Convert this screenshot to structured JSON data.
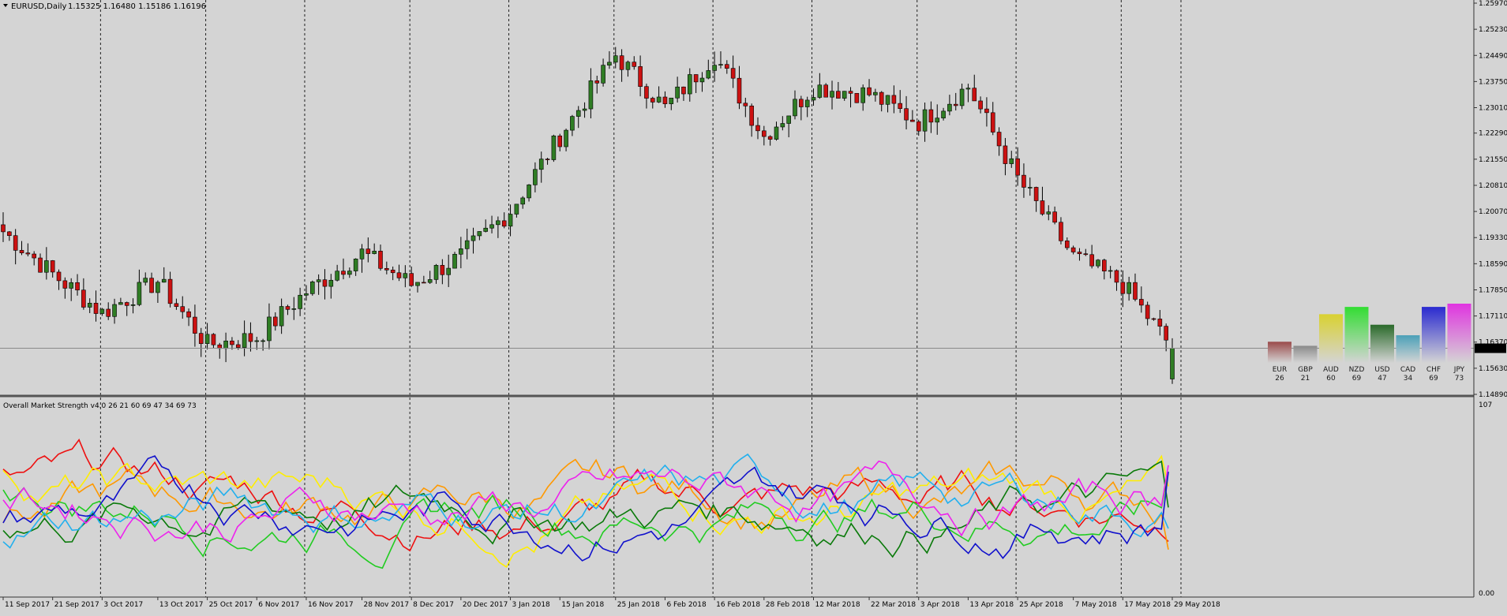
{
  "header": {
    "symbol": "EURUSD,Daily",
    "ohlc": "1.15325 1.16480 1.15186 1.16196"
  },
  "chart_data": [
    {
      "type": "candlestick",
      "title": "EURUSD,Daily",
      "x": [
        "11 Sep 2017",
        "21 Sep 2017",
        "3 Oct 2017",
        "13 Oct 2017",
        "25 Oct 2017",
        "6 Nov 2017",
        "16 Nov 2017",
        "28 Nov 2017",
        "8 Dec 2017",
        "20 Dec 2017",
        "3 Jan 2018",
        "15 Jan 2018",
        "25 Jan 2018",
        "6 Feb 2018",
        "16 Feb 2018",
        "28 Feb 2018",
        "12 Mar 2018",
        "22 Mar 2018",
        "3 Apr 2018",
        "13 Apr 2018",
        "25 Apr 2018",
        "7 May 2018",
        "17 May 2018",
        "29 May 2018"
      ],
      "anchors": [
        1.195,
        1.183,
        1.172,
        1.181,
        1.163,
        1.165,
        1.178,
        1.189,
        1.18,
        1.188,
        1.201,
        1.222,
        1.245,
        1.23,
        1.245,
        1.222,
        1.236,
        1.234,
        1.226,
        1.236,
        1.21,
        1.188,
        1.18,
        1.162
      ],
      "last": {
        "open": 1.15325,
        "high": 1.1648,
        "low": 1.15186,
        "close": 1.16196
      },
      "yticks": [
        "1.25970",
        "1.25230",
        "1.24490",
        "1.23750",
        "1.23010",
        "1.22290",
        "1.21550",
        "1.20810",
        "1.20070",
        "1.19330",
        "1.18590",
        "1.17850",
        "1.17110",
        "1.16370",
        "1.15630",
        "1.14890"
      ],
      "ylim": [
        1.1489,
        1.2597
      ],
      "current_price_label": "1.16196",
      "up_color": "#2f7d24",
      "down_color": "#cc1111",
      "period_separators": true
    },
    {
      "type": "bar",
      "title": "",
      "categories": [
        "EUR",
        "GBP",
        "AUD",
        "NZD",
        "USD",
        "CAD",
        "CHF",
        "JPY"
      ],
      "values": [
        26,
        21,
        60,
        69,
        47,
        34,
        69,
        73
      ],
      "colors": [
        "#9a4a4a",
        "#8a8a8a",
        "#d9d130",
        "#33dd33",
        "#2a6a2a",
        "#4aa0b8",
        "#2a2ad0",
        "#e034e0"
      ],
      "value_labels": [
        "26",
        "21",
        "60",
        "69",
        "47",
        "34",
        "69",
        "73"
      ]
    },
    {
      "type": "line",
      "title": "Overall Market Strength v4.0 26 21 60 69 47 34 69 73",
      "ylim": [
        0,
        107
      ],
      "yticks": [
        "107",
        "0.00"
      ],
      "series": [
        {
          "name": "EUR",
          "color": "#ee1111",
          "last": 26
        },
        {
          "name": "GBP",
          "color": "#ff9900",
          "last": 21
        },
        {
          "name": "AUD",
          "color": "#ffee00",
          "last": 60
        },
        {
          "name": "NZD",
          "color": "#22cc22",
          "last": 69
        },
        {
          "name": "USD",
          "color": "#0a7a0a",
          "last": 47
        },
        {
          "name": "CAD",
          "color": "#22b0ee",
          "last": 34
        },
        {
          "name": "CHF",
          "color": "#1111cc",
          "last": 69
        },
        {
          "name": "JPY",
          "color": "#ee22ee",
          "last": 73
        }
      ]
    }
  ]
}
